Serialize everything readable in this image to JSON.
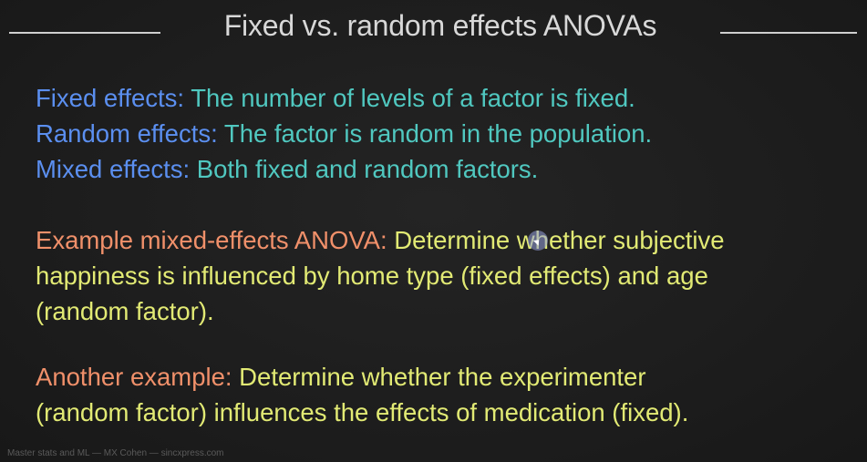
{
  "title": "Fixed vs. random effects ANOVAs",
  "definitions": [
    {
      "term": "Fixed effects:",
      "text": " The number of levels of a factor is fixed."
    },
    {
      "term": "Random effects:",
      "text": " The factor is random in the population."
    },
    {
      "term": "Mixed effects:",
      "text": " Both fixed and random factors."
    }
  ],
  "example1": {
    "label": "Example mixed-effects ANOVA:",
    "line1": " Determine whether subjective",
    "line2": "happiness is influenced by home type (fixed effects) and age",
    "line3": "(random factor)."
  },
  "example2": {
    "label": "Another example:",
    "line1": " Determine whether the experimenter",
    "line2": "(random factor) influences the effects of medication (fixed)."
  },
  "footer": "Master stats and ML — MX Cohen — sincxpress.com",
  "colors": {
    "term": "#5b8ff0",
    "definition": "#50c8c0",
    "example_label": "#f0906a",
    "example_text": "#e2ea74",
    "title": "#d8d8d8",
    "background": "#1e1e1e"
  }
}
